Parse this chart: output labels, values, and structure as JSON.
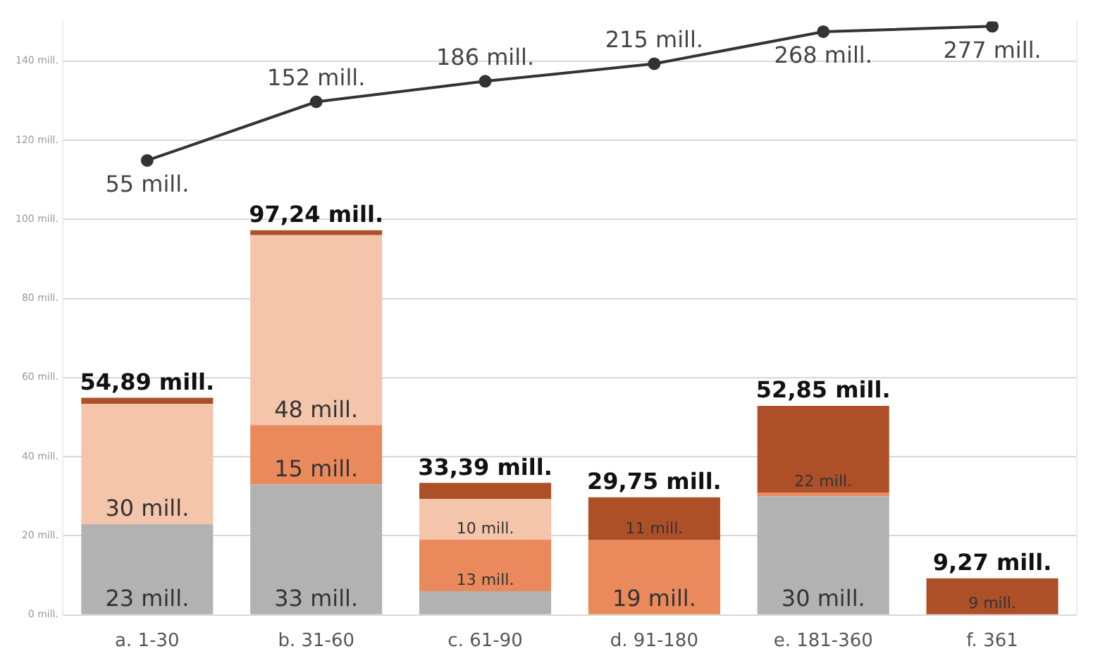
{
  "chart_data": {
    "type": "bar",
    "stacked": true,
    "categories": [
      "a. 1-30",
      "b. 31-60",
      "c. 61-90",
      "d. 91-180",
      "e. 181-360",
      "f. 361"
    ],
    "series": [
      {
        "color": "#b2b2b2",
        "values": [
          23,
          33,
          6,
          null,
          30,
          null
        ],
        "value_labels": [
          "23 mill.",
          "33 mill.",
          null,
          null,
          "30 mill.",
          null
        ]
      },
      {
        "color": "#ea8a5c",
        "values": [
          null,
          15,
          13,
          19,
          0.85,
          null
        ],
        "value_labels": [
          null,
          "15 mill.",
          "13 mill.",
          "19 mill.",
          null,
          null
        ]
      },
      {
        "color": "#f4c4ab",
        "values": [
          30.4,
          48,
          10.3,
          null,
          null,
          null
        ],
        "value_labels": [
          "30 mill.",
          "48 mill.",
          "10 mill.",
          null,
          null,
          null
        ]
      },
      {
        "color": "#ad5028",
        "values": [
          1.49,
          1.24,
          4.09,
          10.75,
          22,
          9.27
        ],
        "value_labels": [
          null,
          null,
          null,
          "11 mill.",
          "22 mill.",
          "9 mill."
        ]
      },
      {
        "type": "line",
        "axis": "y2",
        "color": "#333333",
        "values": [
          55,
          152,
          186,
          215,
          268,
          277
        ],
        "value_labels": [
          "55 mill.",
          "152 mill.",
          "186 mill.",
          "215 mill.",
          "268 mill.",
          "277 mill."
        ]
      }
    ],
    "totals": [
      "54,89 mill.",
      "97,24 mill.",
      "33,39 mill.",
      "29,75 mill.",
      "52,85 mill.",
      "9,27 mill."
    ],
    "ylim": [
      0,
      150
    ],
    "yticks": [
      {
        "value": 0,
        "label": "0 mill."
      },
      {
        "value": 20,
        "label": "20 mill."
      },
      {
        "value": 40,
        "label": "40 mill."
      },
      {
        "value": 60,
        "label": "60 mill."
      },
      {
        "value": 80,
        "label": "80 mill."
      },
      {
        "value": 100,
        "label": "100 mill."
      },
      {
        "value": 120,
        "label": "120 mill."
      },
      {
        "value": 140,
        "label": "140 mill."
      }
    ],
    "y2lim": [
      -697,
      285
    ],
    "grid": "y",
    "marker": "circle",
    "legend": false
  }
}
